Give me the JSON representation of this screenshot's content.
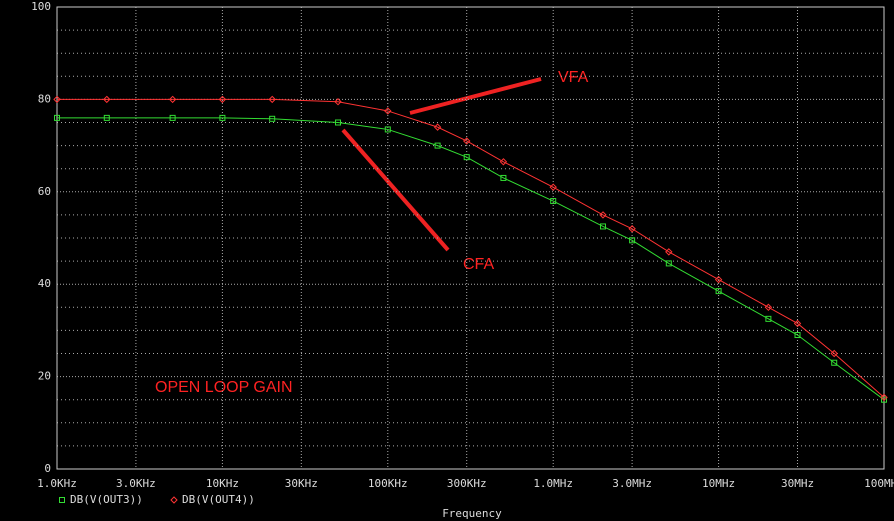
{
  "chart_data": {
    "type": "line",
    "xlabel": "Frequency",
    "xscale": "log",
    "grid": true,
    "x": [
      1000,
      2000,
      5000,
      10000,
      20000,
      50000,
      100000,
      200000,
      300000,
      500000,
      1000000,
      2000000,
      3000000,
      5000000,
      10000000,
      20000000,
      30000000,
      50000000,
      100000000
    ],
    "series": [
      {
        "name": "DB(V(OUT3))",
        "color": "#33dd33",
        "marker": "square",
        "values": [
          76,
          76,
          76,
          76,
          75.8,
          75,
          73.5,
          70,
          67.5,
          63,
          58,
          52.5,
          49.5,
          44.5,
          38.5,
          32.5,
          29,
          23,
          15
        ]
      },
      {
        "name": "DB(V(OUT4))",
        "color": "#ff3333",
        "marker": "diamond",
        "values": [
          80,
          80,
          80,
          80,
          80,
          79.5,
          77.5,
          74,
          71,
          66.5,
          61,
          55,
          52,
          47,
          41,
          35,
          31.5,
          25,
          15.5
        ]
      }
    ],
    "xlim": [
      1000,
      100000000
    ],
    "xticks": [
      {
        "value": 1000,
        "label": "1.0KHz"
      },
      {
        "value": 3000,
        "label": "3.0KHz"
      },
      {
        "value": 10000,
        "label": "10KHz"
      },
      {
        "value": 30000,
        "label": "30KHz"
      },
      {
        "value": 100000,
        "label": "100KHz"
      },
      {
        "value": 300000,
        "label": "300KHz"
      },
      {
        "value": 1000000,
        "label": "1.0MHz"
      },
      {
        "value": 3000000,
        "label": "3.0MHz"
      },
      {
        "value": 10000000,
        "label": "10MHz"
      },
      {
        "value": 30000000,
        "label": "30MHz"
      },
      {
        "value": 100000000,
        "label": "100MHz"
      }
    ],
    "ylim": [
      0,
      100
    ],
    "yticks": [
      0,
      20,
      40,
      60,
      80,
      100
    ],
    "yminor": [
      5,
      10,
      15,
      25,
      30,
      35,
      45,
      50,
      55,
      65,
      70,
      75,
      85,
      90,
      95
    ],
    "annotations": [
      "VFA",
      "CFA",
      "OPEN LOOP GAIN"
    ]
  }
}
